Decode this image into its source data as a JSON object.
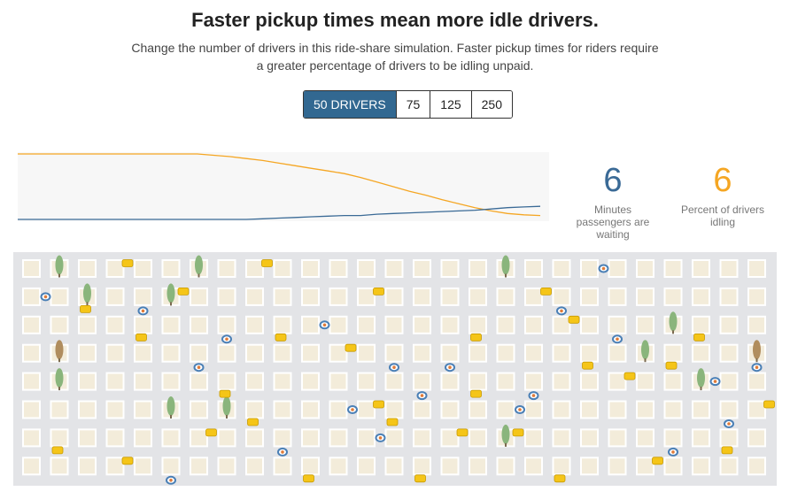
{
  "header": {
    "title": "Faster pickup times mean more idle drivers.",
    "subtitle": "Change the number of drivers in this ride-share simulation. Faster pickup times for riders require a greater percentage of drivers to be idling unpaid."
  },
  "driver_options": [
    {
      "label": "50 DRIVERS",
      "active": true
    },
    {
      "label": "75",
      "active": false
    },
    {
      "label": "125",
      "active": false
    },
    {
      "label": "250",
      "active": false
    }
  ],
  "stats": {
    "wait": {
      "value": "6",
      "label": "Minutes passengers are waiting",
      "color": "#3a6a96"
    },
    "idle": {
      "value": "6",
      "label": "Percent of drivers idling",
      "color": "#f5a623"
    }
  },
  "chart_data": {
    "type": "line",
    "x_count": 12,
    "series": [
      {
        "color": "#f5a623",
        "values": [
          100,
          100,
          100,
          100,
          100,
          100,
          100,
          100,
          100,
          100,
          100,
          100,
          98,
          96,
          93,
          90,
          86,
          82,
          78,
          74,
          70,
          64,
          57,
          50,
          43,
          37,
          30,
          24,
          18,
          13,
          9,
          7,
          6
        ]
      },
      {
        "color": "#3a6a96",
        "values": [
          0,
          0,
          0,
          0,
          0,
          0,
          0,
          0,
          0,
          0,
          0,
          0,
          0,
          0,
          0,
          1,
          2,
          3,
          4,
          5,
          6,
          6,
          8,
          9,
          10,
          11,
          12,
          13,
          14,
          16,
          18,
          19,
          20
        ]
      }
    ],
    "ylim": [
      0,
      100
    ],
    "grid": false
  },
  "simulation": {
    "colors": {
      "road": "#e3e4e7",
      "block": "#f3ecda",
      "block_border": "#ffffff",
      "taxi": "#f5c518",
      "taxi_dark": "#c89a00",
      "rider": "#4a7fb5",
      "tree": "#8ab57c",
      "tree_brown": "#b08d5e"
    },
    "icons": [
      "car-icon",
      "passenger-icon",
      "tree-icon"
    ],
    "cars": [
      [
        2,
        1
      ],
      [
        3,
        0
      ],
      [
        4,
        2
      ],
      [
        5,
        1
      ],
      [
        7,
        4
      ],
      [
        8,
        0
      ],
      [
        9,
        2
      ],
      [
        11,
        3
      ],
      [
        13,
        5
      ],
      [
        15,
        6
      ],
      [
        16,
        2
      ],
      [
        18,
        1
      ],
      [
        20,
        3
      ],
      [
        21,
        4
      ],
      [
        24,
        2
      ],
      [
        26,
        5
      ],
      [
        1,
        6
      ],
      [
        6,
        6
      ],
      [
        10,
        7
      ],
      [
        12,
        5
      ],
      [
        14,
        7
      ],
      [
        17,
        6
      ],
      [
        19,
        7
      ],
      [
        22,
        7
      ],
      [
        25,
        6
      ],
      [
        3,
        7
      ],
      [
        8,
        5
      ],
      [
        12,
        1
      ],
      [
        16,
        4
      ],
      [
        19,
        2
      ],
      [
        23,
        3
      ]
    ],
    "riders": [
      [
        0,
        1
      ],
      [
        4,
        1
      ],
      [
        6,
        3
      ],
      [
        10,
        2
      ],
      [
        13,
        3
      ],
      [
        14,
        4
      ],
      [
        17,
        5
      ],
      [
        18,
        4
      ],
      [
        19,
        1
      ],
      [
        20,
        0
      ],
      [
        21,
        2
      ],
      [
        23,
        6
      ],
      [
        24,
        4
      ],
      [
        25,
        5
      ],
      [
        26,
        3
      ],
      [
        27,
        6
      ],
      [
        7,
        2
      ],
      [
        9,
        6
      ],
      [
        11,
        5
      ],
      [
        15,
        3
      ],
      [
        5,
        7
      ],
      [
        12,
        6
      ]
    ],
    "trees": [
      [
        1,
        0,
        "green"
      ],
      [
        2,
        1,
        "green"
      ],
      [
        6,
        0,
        "green"
      ],
      [
        5,
        1,
        "green"
      ],
      [
        1,
        3,
        "brown"
      ],
      [
        1,
        4,
        "green"
      ],
      [
        5,
        5,
        "green"
      ],
      [
        7,
        5,
        "green"
      ],
      [
        17,
        0,
        "green"
      ],
      [
        22,
        3,
        "green"
      ],
      [
        23,
        2,
        "green"
      ],
      [
        24,
        4,
        "green"
      ],
      [
        26,
        3,
        "brown"
      ],
      [
        17,
        6,
        "green"
      ]
    ]
  }
}
